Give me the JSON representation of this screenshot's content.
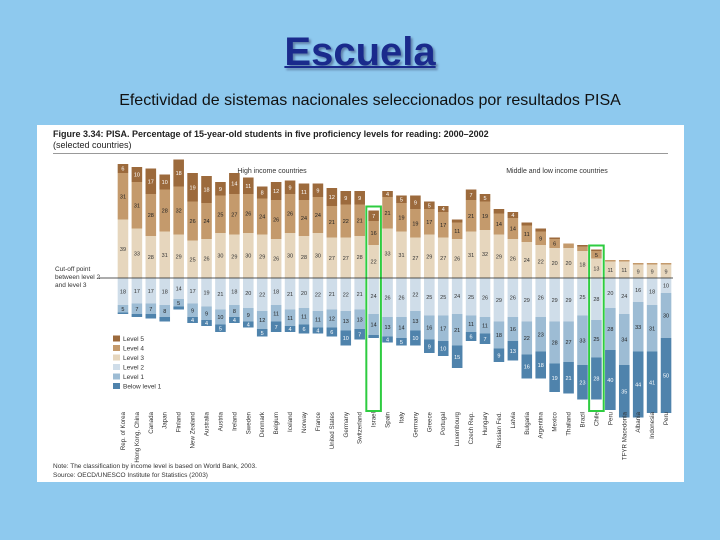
{
  "slide": {
    "title": "Escuela",
    "subtitle": "Efectividad de sistemas nacionales seleccionados por resultados PISA"
  },
  "figure": {
    "title": "Figure 3.34: PISA. Percentage of 15-year-old students in five proficiency levels for reading: 2000–2002",
    "subtitle": "(selected countries)",
    "group_high": "High income countries",
    "group_mid": "Middle and low income countries",
    "cutoff_label_1": "Cut-off point",
    "cutoff_label_2": "between level 2",
    "cutoff_label_3": "and level 3",
    "note_1": "Note: The classification by income level is based on World Bank, 2003.",
    "note_2": "Source: OECD/UNESCO Institute for Statistics (2003)"
  },
  "colors": {
    "level5": "#9c6a3c",
    "level4": "#c49a6c",
    "level3": "#e6d6bd",
    "level2": "#cfdde9",
    "level1": "#9dbcd4",
    "below1": "#4f83ac",
    "highlight": "#2ecc40"
  },
  "chart_data": {
    "type": "bar",
    "stacked": "diverging",
    "baseline": "cut-off between level 2 and level 3",
    "legend_order_top_to_bottom": [
      "Level 5",
      "Level 4",
      "Level 3",
      "Level 2",
      "Level 1",
      "Below level 1"
    ],
    "highlighted": [
      "Israel",
      "Chile"
    ],
    "countries": [
      {
        "name": "Rep. of Korea",
        "group": "high",
        "l5": 6,
        "l4": 31,
        "l3": 39,
        "l2": 18,
        "l1": 5,
        "b1": 1
      },
      {
        "name": "Hong Kong, China",
        "group": "high",
        "l5": 10,
        "l4": 31,
        "l3": 33,
        "l2": 17,
        "l1": 7,
        "b1": 2
      },
      {
        "name": "Canada",
        "group": "high",
        "l5": 17,
        "l4": 28,
        "l3": 28,
        "l2": 17,
        "l1": 7,
        "b1": 3
      },
      {
        "name": "Japan",
        "group": "high",
        "l5": 10,
        "l4": 28,
        "l3": 31,
        "l2": 18,
        "l1": 8,
        "b1": 3
      },
      {
        "name": "Finland",
        "group": "high",
        "l5": 18,
        "l4": 32,
        "l3": 29,
        "l2": 14,
        "l1": 5,
        "b1": 2
      },
      {
        "name": "New Zealand",
        "group": "high",
        "l5": 19,
        "l4": 26,
        "l3": 25,
        "l2": 17,
        "l1": 9,
        "b1": 4
      },
      {
        "name": "Australia",
        "group": "high",
        "l5": 18,
        "l4": 24,
        "l3": 26,
        "l2": 19,
        "l1": 9,
        "b1": 4
      },
      {
        "name": "Austria",
        "group": "high",
        "l5": 9,
        "l4": 25,
        "l3": 30,
        "l2": 21,
        "l1": 10,
        "b1": 5
      },
      {
        "name": "Ireland",
        "group": "high",
        "l5": 14,
        "l4": 27,
        "l3": 29,
        "l2": 18,
        "l1": 8,
        "b1": 4
      },
      {
        "name": "Sweden",
        "group": "high",
        "l5": 11,
        "l4": 26,
        "l3": 30,
        "l2": 20,
        "l1": 9,
        "b1": 4
      },
      {
        "name": "Denmark",
        "group": "high",
        "l5": 8,
        "l4": 24,
        "l3": 29,
        "l2": 22,
        "l1": 12,
        "b1": 5
      },
      {
        "name": "Belgium",
        "group": "high",
        "l5": 12,
        "l4": 26,
        "l3": 26,
        "l2": 18,
        "l1": 11,
        "b1": 7
      },
      {
        "name": "Iceland",
        "group": "high",
        "l5": 9,
        "l4": 26,
        "l3": 30,
        "l2": 21,
        "l1": 11,
        "b1": 4
      },
      {
        "name": "Norway",
        "group": "high",
        "l5": 11,
        "l4": 24,
        "l3": 28,
        "l2": 20,
        "l1": 11,
        "b1": 6
      },
      {
        "name": "France",
        "group": "high",
        "l5": 9,
        "l4": 24,
        "l3": 30,
        "l2": 22,
        "l1": 11,
        "b1": 4
      },
      {
        "name": "United States",
        "group": "high",
        "l5": 12,
        "l4": 21,
        "l3": 27,
        "l2": 21,
        "l1": 12,
        "b1": 6
      },
      {
        "name": "Germany",
        "group": "high",
        "l5": 9,
        "l4": 22,
        "l3": 27,
        "l2": 22,
        "l1": 13,
        "b1": 10
      },
      {
        "name": "Switzerland",
        "group": "high",
        "l5": 9,
        "l4": 21,
        "l3": 28,
        "l2": 21,
        "l1": 13,
        "b1": 7
      },
      {
        "name": "Israel",
        "group": "high",
        "l5": 7,
        "l4": 16,
        "l3": 22,
        "l2": 24,
        "l1": 14,
        "b1": 2
      },
      {
        "name": "Spain",
        "group": "high",
        "l5": 4,
        "l4": 21,
        "l3": 33,
        "l2": 26,
        "l1": 13,
        "b1": 4
      },
      {
        "name": "Italy",
        "group": "high",
        "l5": 5,
        "l4": 19,
        "l3": 31,
        "l2": 26,
        "l1": 14,
        "b1": 5
      },
      {
        "name": "Germany",
        "group": "high",
        "l5": 9,
        "l4": 19,
        "l3": 27,
        "l2": 22,
        "l1": 13,
        "b1": 10
      },
      {
        "name": "Greece",
        "group": "high",
        "l5": 5,
        "l4": 17,
        "l3": 29,
        "l2": 25,
        "l1": 16,
        "b1": 9
      },
      {
        "name": "Portugal",
        "group": "high",
        "l5": 4,
        "l4": 17,
        "l3": 27,
        "l2": 25,
        "l1": 17,
        "b1": 10
      },
      {
        "name": "Luxembourg",
        "group": "high",
        "l5": 2,
        "l4": 11,
        "l3": 26,
        "l2": 24,
        "l1": 21,
        "b1": 15
      },
      {
        "name": "Czech Rep.",
        "group": "mid",
        "l5": 7,
        "l4": 21,
        "l3": 31,
        "l2": 25,
        "l1": 11,
        "b1": 6
      },
      {
        "name": "Hungary",
        "group": "mid",
        "l5": 5,
        "l4": 19,
        "l3": 32,
        "l2": 26,
        "l1": 11,
        "b1": 7
      },
      {
        "name": "Russian Fed.",
        "group": "mid",
        "l5": 3,
        "l4": 14,
        "l3": 29,
        "l2": 29,
        "l1": 18,
        "b1": 9
      },
      {
        "name": "Latvia",
        "group": "mid",
        "l5": 4,
        "l4": 14,
        "l3": 26,
        "l2": 26,
        "l1": 16,
        "b1": 13
      },
      {
        "name": "Bulgaria",
        "group": "mid",
        "l5": 2,
        "l4": 11,
        "l3": 24,
        "l2": 29,
        "l1": 22,
        "b1": 16
      },
      {
        "name": "Argentina",
        "group": "mid",
        "l5": 2,
        "l4": 9,
        "l3": 22,
        "l2": 26,
        "l1": 23,
        "b1": 18
      },
      {
        "name": "Mexico",
        "group": "mid",
        "l5": 1,
        "l4": 6,
        "l3": 20,
        "l2": 29,
        "l1": 28,
        "b1": 19
      },
      {
        "name": "Thailand",
        "group": "mid",
        "l5": 0,
        "l4": 3,
        "l3": 20,
        "l2": 29,
        "l1": 27,
        "b1": 21
      },
      {
        "name": "Brazil",
        "group": "mid",
        "l5": 1,
        "l4": 3,
        "l3": 18,
        "l2": 25,
        "l1": 33,
        "b1": 23
      },
      {
        "name": "Chile",
        "group": "mid",
        "l5": 1,
        "l4": 5,
        "l3": 13,
        "l2": 28,
        "l1": 25,
        "b1": 28
      },
      {
        "name": "Peru",
        "group": "mid",
        "l5": 0,
        "l4": 1,
        "l3": 11,
        "l2": 20,
        "l1": 28,
        "b1": 40
      },
      {
        "name": "TFYR Macedonia",
        "group": "mid",
        "l5": 0,
        "l4": 1,
        "l3": 11,
        "l2": 24,
        "l1": 34,
        "b1": 35
      },
      {
        "name": "Albania",
        "group": "mid",
        "l5": 0,
        "l4": 1,
        "l3": 9,
        "l2": 16,
        "l1": 33,
        "b1": 44
      },
      {
        "name": "Indonesia",
        "group": "mid",
        "l5": 0,
        "l4": 1,
        "l3": 9,
        "l2": 18,
        "l1": 31,
        "b1": 41
      },
      {
        "name": "Peru",
        "group": "mid",
        "l5": 0,
        "l4": 1,
        "l3": 9,
        "l2": 10,
        "l1": 30,
        "b1": 50
      }
    ]
  }
}
